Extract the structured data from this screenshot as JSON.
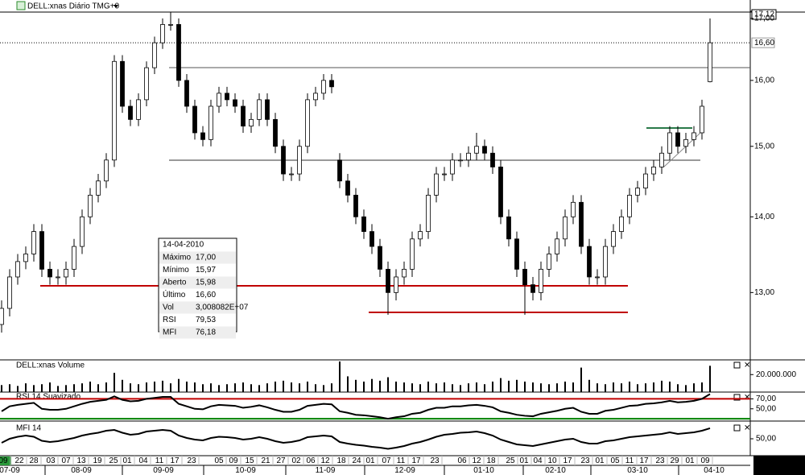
{
  "chart_data": {
    "type": "candlestick",
    "title": "DELL:xnas Diário TMG+0",
    "log_scale": true,
    "up_color": "#ffffff",
    "down_color": "#000000",
    "open": [
      12.6,
      12.8,
      13.2,
      13.4,
      13.5,
      13.8,
      13.3,
      13.2,
      13.2,
      13.3,
      13.6,
      14.0,
      14.3,
      14.5,
      14.8,
      16.3,
      15.6,
      15.4,
      15.7,
      16.2,
      16.6,
      16.9,
      16.9,
      16.0,
      15.6,
      15.2,
      15.1,
      15.6,
      15.8,
      15.7,
      15.6,
      15.3,
      15.4,
      15.7,
      15.4,
      15.0,
      14.6,
      14.6,
      15.0,
      15.7,
      15.8,
      16.0,
      14.8,
      14.5,
      14.3,
      14.0,
      13.8,
      13.6,
      13.3,
      13.0,
      13.2,
      13.3,
      13.7,
      13.8,
      14.3,
      14.6,
      14.6,
      14.8,
      14.8,
      14.9,
      15.0,
      14.9,
      14.7,
      14.0,
      13.7,
      13.3,
      13.1,
      13.0,
      13.3,
      13.5,
      13.7,
      14.0,
      14.2,
      13.6,
      13.2,
      13.2,
      13.6,
      13.8,
      14.0,
      14.3,
      14.4,
      14.6,
      14.7,
      14.9,
      15.2,
      15.0,
      15.1,
      15.2,
      15.98
    ],
    "high": [
      12.9,
      13.3,
      13.5,
      13.6,
      13.9,
      13.9,
      13.4,
      13.3,
      13.4,
      13.7,
      14.1,
      14.4,
      14.6,
      14.9,
      16.4,
      16.4,
      15.7,
      15.8,
      16.3,
      16.7,
      17.0,
      17.1,
      17.0,
      16.1,
      15.7,
      15.3,
      15.7,
      15.9,
      15.9,
      15.8,
      15.7,
      15.5,
      15.8,
      15.8,
      15.5,
      15.1,
      14.7,
      15.1,
      15.8,
      15.9,
      16.1,
      16.1,
      14.9,
      14.6,
      14.4,
      14.1,
      13.9,
      13.7,
      13.4,
      13.3,
      13.4,
      13.8,
      13.9,
      14.4,
      14.7,
      14.7,
      14.9,
      14.9,
      15.0,
      15.2,
      15.1,
      15.0,
      14.8,
      14.1,
      13.8,
      13.4,
      13.2,
      13.4,
      13.6,
      13.8,
      14.1,
      14.3,
      14.3,
      13.7,
      13.3,
      13.7,
      13.9,
      14.1,
      14.4,
      14.5,
      14.7,
      14.8,
      15.0,
      15.3,
      15.3,
      15.2,
      15.3,
      15.7,
      17.0
    ],
    "low": [
      12.5,
      12.7,
      13.1,
      13.3,
      13.4,
      13.2,
      13.1,
      13.1,
      13.1,
      13.2,
      13.5,
      13.9,
      14.2,
      14.4,
      14.7,
      15.5,
      15.3,
      15.3,
      15.6,
      16.1,
      16.5,
      16.8,
      15.9,
      15.5,
      15.1,
      15.0,
      15.0,
      15.5,
      15.6,
      15.5,
      15.2,
      15.2,
      15.3,
      15.3,
      14.9,
      14.5,
      14.5,
      14.5,
      14.9,
      15.6,
      15.7,
      15.8,
      14.4,
      14.2,
      13.9,
      13.7,
      13.5,
      13.2,
      12.72,
      12.9,
      13.1,
      13.2,
      13.6,
      13.7,
      14.2,
      14.5,
      14.5,
      14.7,
      14.7,
      14.8,
      14.8,
      14.6,
      13.9,
      13.6,
      13.2,
      12.72,
      12.9,
      12.9,
      13.2,
      13.4,
      13.6,
      13.9,
      13.5,
      13.1,
      13.1,
      13.1,
      13.5,
      13.7,
      13.9,
      14.2,
      14.3,
      14.5,
      14.6,
      14.8,
      14.9,
      14.9,
      15.0,
      15.1,
      15.97
    ],
    "close": [
      12.8,
      13.2,
      13.4,
      13.5,
      13.8,
      13.3,
      13.2,
      13.2,
      13.3,
      13.6,
      14.0,
      14.3,
      14.5,
      14.8,
      16.3,
      15.6,
      15.4,
      15.7,
      16.2,
      16.6,
      16.9,
      16.9,
      16.0,
      15.6,
      15.2,
      15.1,
      15.6,
      15.8,
      15.7,
      15.6,
      15.3,
      15.4,
      15.7,
      15.4,
      15.0,
      14.6,
      14.6,
      15.0,
      15.7,
      15.8,
      16.0,
      15.9,
      14.5,
      14.3,
      14.0,
      13.8,
      13.6,
      13.3,
      13.0,
      13.2,
      13.3,
      13.7,
      13.8,
      14.3,
      14.6,
      14.6,
      14.8,
      14.8,
      14.9,
      15.0,
      14.9,
      14.7,
      14.0,
      13.7,
      13.3,
      13.1,
      13.0,
      13.3,
      13.5,
      13.7,
      14.0,
      14.2,
      13.6,
      13.2,
      13.2,
      13.6,
      13.8,
      14.0,
      14.3,
      14.4,
      14.6,
      14.7,
      14.9,
      15.2,
      15.0,
      15.1,
      15.2,
      15.6,
      16.6
    ],
    "ylim": [
      12.19,
      17.12
    ],
    "yticks": [
      {
        "value": 17.12,
        "label": "17,12"
      },
      {
        "value": 17,
        "label": "17,00"
      },
      {
        "value": 16,
        "label": "16,00"
      },
      {
        "value": 15,
        "label": "15,00"
      },
      {
        "value": 14,
        "label": "14,00"
      },
      {
        "value": 13,
        "label": "13,00"
      }
    ],
    "last_price": {
      "value": 16.6,
      "label": "16,60"
    },
    "info": {
      "date": "14-04-2010",
      "rows": [
        [
          "Máximo",
          "17,00"
        ],
        [
          "Mínimo",
          "15,97"
        ],
        [
          "Aberto",
          "15,98"
        ],
        [
          "Último",
          "16,60"
        ],
        [
          "Vol",
          "3,008082E+07"
        ],
        [
          "RSI",
          "79,53"
        ],
        [
          "MFI",
          "76,18"
        ]
      ]
    },
    "volume": {
      "title": "DELL:xnas Volume",
      "color": "#000000",
      "values": [
        8000000,
        9000000,
        7000000,
        10000000,
        8000000,
        9000000,
        11000000,
        7000000,
        8000000,
        9000000,
        10000000,
        12000000,
        9000000,
        11000000,
        22000000,
        14000000,
        10000000,
        9000000,
        11000000,
        12000000,
        13000000,
        10000000,
        15000000,
        12000000,
        11000000,
        9000000,
        10000000,
        8000000,
        9000000,
        10000000,
        11000000,
        9000000,
        8000000,
        10000000,
        12000000,
        13000000,
        11000000,
        10000000,
        12000000,
        9000000,
        8000000,
        10000000,
        35000000,
        18000000,
        14000000,
        12000000,
        15000000,
        13000000,
        17000000,
        12000000,
        11000000,
        10000000,
        9000000,
        12000000,
        10000000,
        11000000,
        9000000,
        8000000,
        10000000,
        11000000,
        9000000,
        12000000,
        16000000,
        13000000,
        14000000,
        12000000,
        11000000,
        10000000,
        9000000,
        10000000,
        12000000,
        11000000,
        28000000,
        14000000,
        10000000,
        9000000,
        11000000,
        10000000,
        12000000,
        9000000,
        10000000,
        11000000,
        13000000,
        12000000,
        9000000,
        8000000,
        10000000,
        11000000,
        30080820
      ],
      "ylim": [
        0,
        35000000
      ],
      "yticks": [
        {
          "value": 20000000,
          "label": "20.000.000"
        }
      ]
    },
    "rsi": {
      "title": "RSI 14 Suavizado",
      "color": "#000000",
      "values": [
        45,
        55,
        58,
        60,
        62,
        50,
        48,
        48,
        50,
        55,
        60,
        64,
        66,
        68,
        75,
        68,
        65,
        66,
        70,
        72,
        74,
        74,
        60,
        55,
        50,
        49,
        55,
        58,
        57,
        56,
        52,
        54,
        57,
        53,
        48,
        44,
        44,
        48,
        56,
        58,
        60,
        59,
        45,
        42,
        38,
        37,
        35,
        33,
        30,
        33,
        35,
        40,
        42,
        48,
        52,
        52,
        55,
        55,
        57,
        58,
        56,
        53,
        45,
        42,
        38,
        36,
        35,
        40,
        43,
        46,
        50,
        52,
        44,
        40,
        40,
        46,
        48,
        52,
        56,
        57,
        60,
        61,
        63,
        66,
        63,
        64,
        66,
        70,
        79.53
      ],
      "ylim": [
        27,
        82
      ],
      "yticks": [
        {
          "value": 70,
          "label": "70,00"
        },
        {
          "value": 50,
          "label": "50,00"
        }
      ],
      "levels": [
        {
          "value": 70,
          "color": "#c00000"
        },
        {
          "value": 30,
          "color": "#008000"
        }
      ]
    },
    "mfi": {
      "title": "MFI 14",
      "color": "#000000",
      "values": [
        40,
        50,
        55,
        58,
        55,
        45,
        42,
        44,
        48,
        52,
        58,
        62,
        65,
        70,
        72,
        65,
        60,
        62,
        68,
        70,
        72,
        70,
        58,
        52,
        48,
        46,
        52,
        55,
        54,
        52,
        48,
        50,
        54,
        50,
        44,
        40,
        42,
        46,
        54,
        56,
        58,
        56,
        42,
        38,
        35,
        33,
        30,
        28,
        25,
        28,
        32,
        38,
        42,
        48,
        55,
        60,
        62,
        65,
        66,
        68,
        64,
        58,
        48,
        42,
        36,
        34,
        32,
        36,
        40,
        44,
        48,
        50,
        42,
        38,
        38,
        44,
        46,
        50,
        54,
        56,
        58,
        60,
        62,
        66,
        62,
        64,
        66,
        70,
        76.18
      ],
      "ylim": [
        10,
        90
      ],
      "yticks": [
        {
          "value": 50,
          "label": "50,00"
        }
      ]
    },
    "day_labels": [
      "09",
      "22",
      "28",
      "03",
      "07",
      "13",
      "19",
      "25",
      "01",
      "04",
      "11",
      "17",
      "23",
      "05",
      "09",
      "15",
      "21",
      "27",
      "02",
      "06",
      "12",
      "18",
      "24",
      "01",
      "07",
      "11",
      "17",
      "23",
      "06",
      "12",
      "18",
      "25",
      "01",
      "04",
      "10",
      "17",
      "23",
      "01",
      "05",
      "11",
      "17",
      "23",
      "29",
      "01",
      "09"
    ],
    "month_labels": [
      "07-09",
      "08-09",
      "09-09",
      "10-09",
      "11-09",
      "12-09",
      "01-10",
      "02-10",
      "03-10",
      "04-10"
    ]
  }
}
